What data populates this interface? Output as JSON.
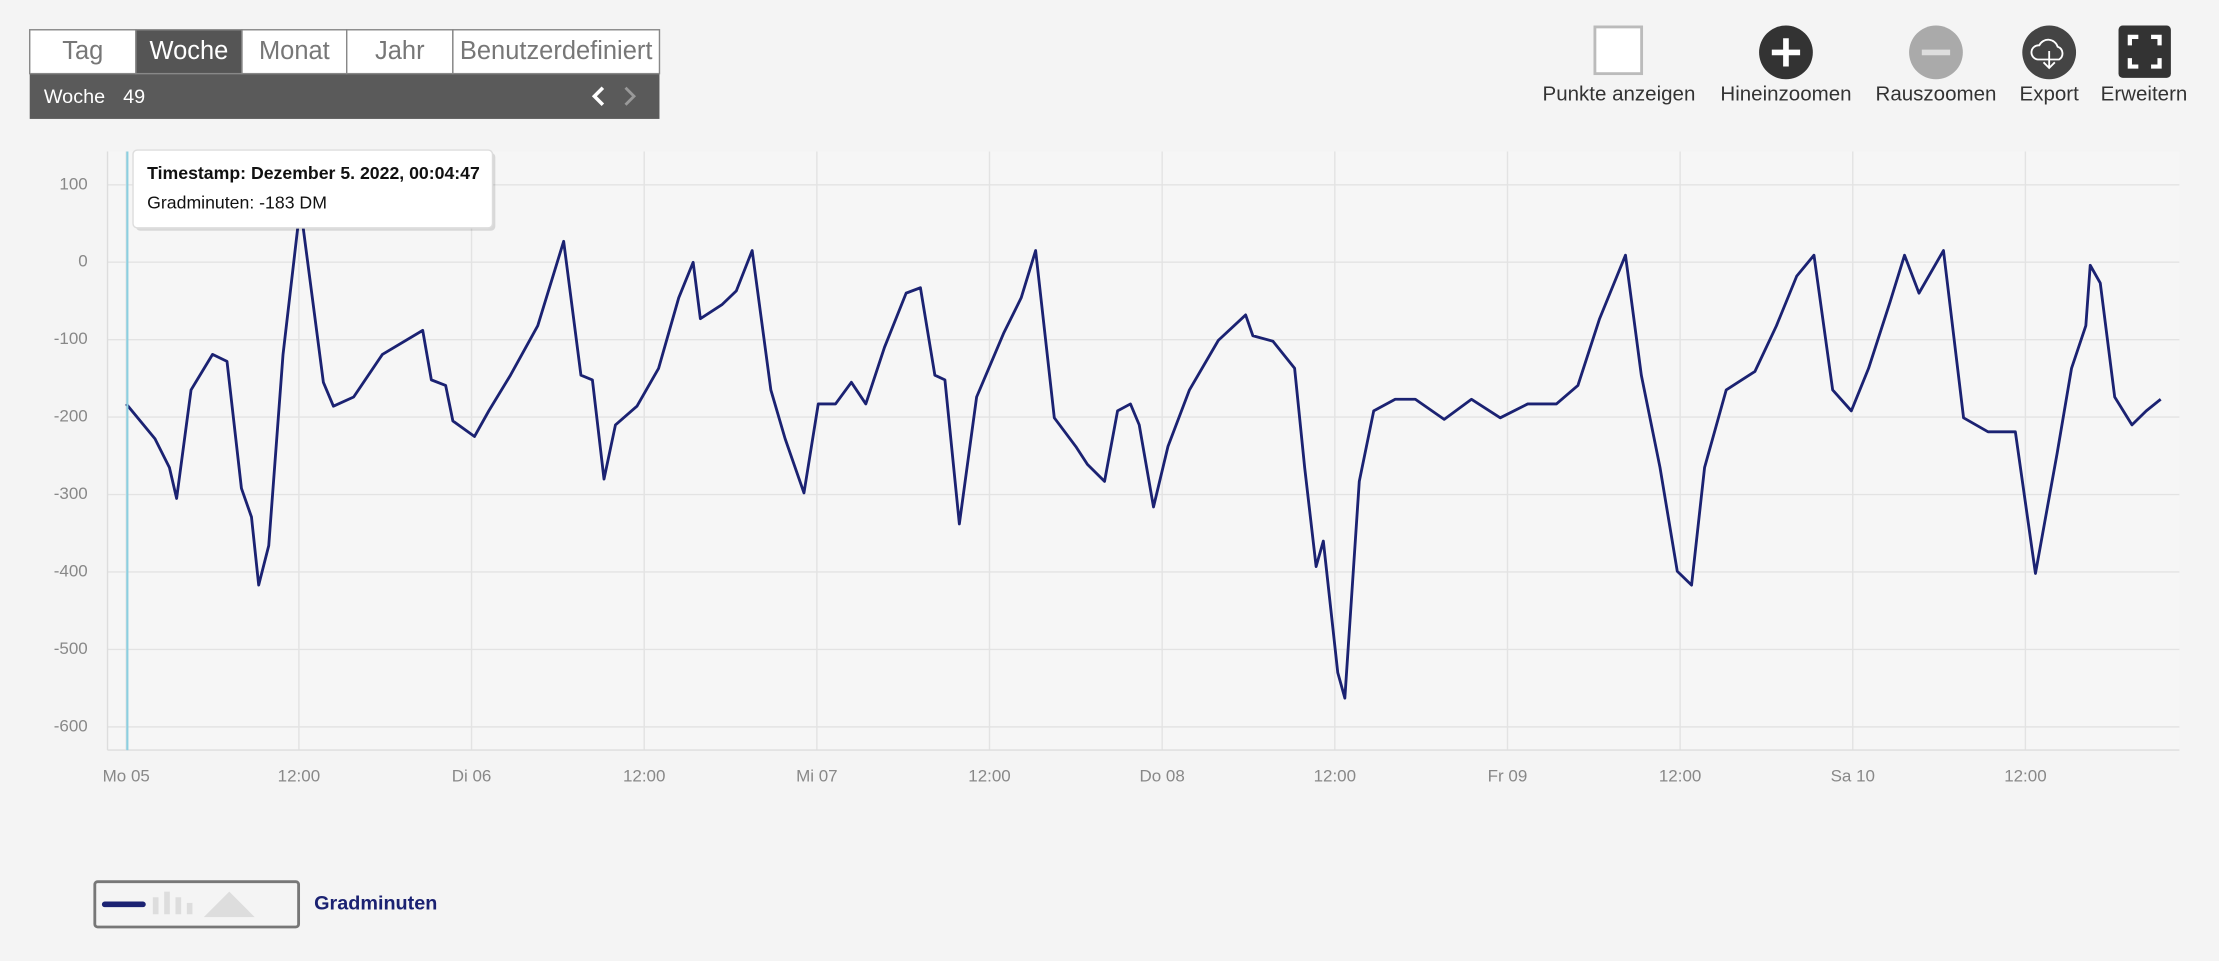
{
  "tabs": [
    "Tag",
    "Woche",
    "Monat",
    "Jahr",
    "Benutzerdefiniert"
  ],
  "period": {
    "label": "Woche",
    "value": "49"
  },
  "toolbar": [
    "Punkte anzeigen",
    "Hineinzoomen",
    "Rauszoomen",
    "Export",
    "Erweitern"
  ],
  "tooltip": {
    "timestamp": "Timestamp: Dezember 5. 2022, 00:04:47",
    "value": "Gradminuten: -183 DM"
  },
  "chart_data": {
    "type": "line",
    "x": [
      0,
      2,
      3,
      3.5,
      4.5,
      6,
      7,
      8,
      8.7,
      9.2,
      9.9,
      10.9,
      12.1,
      13.7,
      14.4,
      15.8,
      17.8,
      20.6,
      21.2,
      22.2,
      22.7,
      24.2,
      25.2,
      26.7,
      28.6,
      30.4,
      31.6,
      32.4,
      33.2,
      34,
      35.5,
      37,
      38.4,
      39.4,
      39.9,
      41.4,
      42.4,
      43.5,
      44.8,
      45.8,
      47.1,
      48.1,
      49.3,
      50.4,
      51.4,
      52.7,
      54.2,
      55.2,
      56.2,
      56.9,
      57.9,
      59.1,
      61,
      62.2,
      63.2,
      64.5,
      66,
      66.8,
      68,
      68.9,
      69.8,
      70.4,
      71.4,
      72.4,
      73.9,
      75.9,
      77.8,
      78.3,
      79.7,
      81.2,
      81.9,
      82.7,
      83.2,
      84.2,
      84.7,
      85.7,
      86.7,
      88.2,
      89.6,
      91.6,
      93.5,
      95.5,
      97.4,
      99.4,
      100.9,
      102.4,
      104.2,
      105.3,
      106.6,
      107.8,
      108.8,
      109.7,
      111.2,
      113.2,
      114.7,
      116.1,
      117.3,
      118.6,
      119.9,
      121.1,
      122.6,
      123.6,
      124.6,
      126.3,
      127.7,
      129.4,
      131.3,
      132.7,
      134.2,
      135.2,
      136.2,
      136.5,
      137.2,
      138.2,
      139.4,
      140.4,
      141.4
    ],
    "series": [
      {
        "name": "Gradminuten",
        "color": "#1b2272",
        "values": [
          -183,
          -228,
          -265,
          -305,
          -165,
          -119,
          -128,
          -292,
          -329,
          -417,
          -366,
          -119,
          73,
          -155,
          -186,
          -174,
          -119,
          -88,
          -152,
          -159,
          -205,
          -225,
          -192,
          -146,
          -82,
          27,
          -146,
          -152,
          -280,
          -210,
          -186,
          -137,
          -46,
          0,
          -73,
          -55,
          -37,
          15,
          -165,
          -228,
          -298,
          -183,
          -183,
          -155,
          -183,
          -110,
          -40,
          -33,
          -146,
          -152,
          -338,
          -174,
          -91,
          -46,
          15,
          -201,
          -238,
          -261,
          -283,
          -192,
          -183,
          -210,
          -316,
          -238,
          -165,
          -101,
          -68,
          -95,
          -102,
          -137,
          -265,
          -393,
          -360,
          -530,
          -563,
          -283,
          -192,
          -177,
          -177,
          -203,
          -177,
          -201,
          -183,
          -183,
          -159,
          -73,
          9,
          -146,
          -265,
          -399,
          -417,
          -265,
          -165,
          -141,
          -82,
          -18,
          9,
          -165,
          -192,
          -137,
          -51,
          9,
          -40,
          15,
          -201,
          -219,
          -219,
          -402,
          -247,
          -137,
          -82,
          -4,
          -27,
          -174,
          -210,
          -192,
          -177
        ]
      }
    ],
    "xlim": [
      -1.3,
      142.7
    ],
    "xticks": [
      {
        "value": 0,
        "label": "Mo 05"
      },
      {
        "value": 12,
        "label": "12:00"
      },
      {
        "value": 24,
        "label": "Di 06"
      },
      {
        "value": 36,
        "label": "12:00"
      },
      {
        "value": 48,
        "label": "Mi 07"
      },
      {
        "value": 60,
        "label": "12:00"
      },
      {
        "value": 72,
        "label": "Do 08"
      },
      {
        "value": 84,
        "label": "12:00"
      },
      {
        "value": 96,
        "label": "Fr 09"
      },
      {
        "value": 108,
        "label": "12:00"
      },
      {
        "value": 120,
        "label": "Sa 10"
      },
      {
        "value": 132,
        "label": "12:00"
      }
    ],
    "ylim": [
      -630,
      143
    ],
    "yticks": [
      100,
      0,
      -100,
      -200,
      -300,
      -400,
      -500,
      -600
    ],
    "grid": true
  }
}
